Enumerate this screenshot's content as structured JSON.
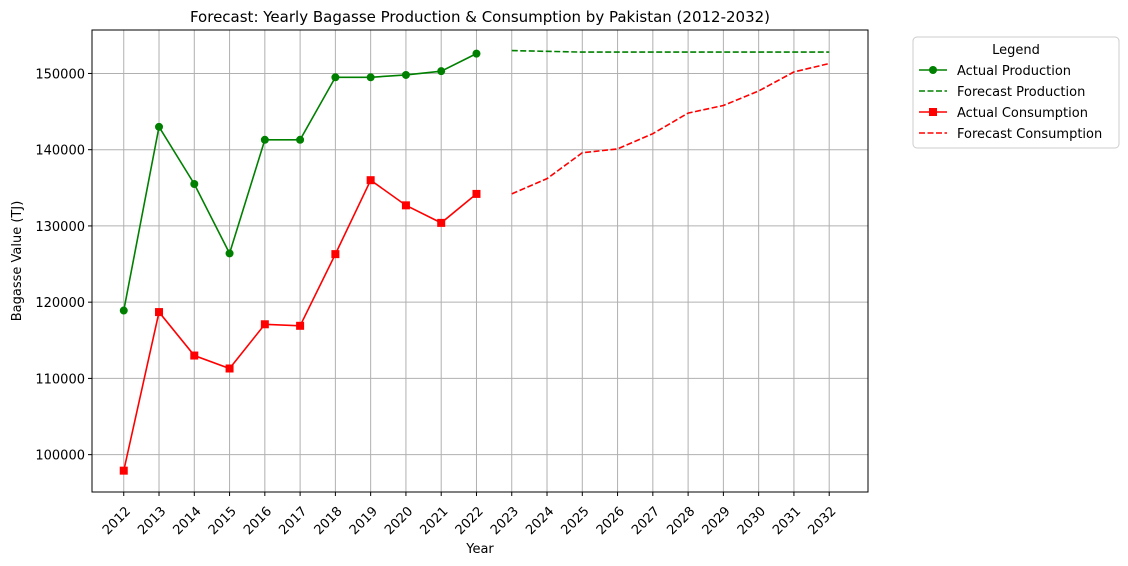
{
  "chart_data": {
    "type": "line",
    "title": "Forecast: Yearly Bagasse Production & Consumption by Pakistan (2012-2032)",
    "xlabel": "Year",
    "ylabel": "Bagasse Value (TJ)",
    "x": [
      2012,
      2013,
      2014,
      2015,
      2016,
      2017,
      2018,
      2019,
      2020,
      2021,
      2022,
      2023,
      2024,
      2025,
      2026,
      2027,
      2028,
      2029,
      2030,
      2031,
      2032
    ],
    "xlim": [
      2011.1,
      2033.1
    ],
    "ylim": [
      95100,
      155700
    ],
    "yticks": [
      100000,
      110000,
      120000,
      130000,
      140000,
      150000
    ],
    "grid": true,
    "legend": {
      "title": "Legend",
      "placement": "outside-upper-right"
    },
    "series": [
      {
        "name": "Actual Production",
        "color": "#008000",
        "style": "solid",
        "marker": "circle",
        "x": [
          2012,
          2013,
          2014,
          2015,
          2016,
          2017,
          2018,
          2019,
          2020,
          2021,
          2022
        ],
        "values": [
          118900,
          143000,
          135500,
          126400,
          141300,
          141300,
          149500,
          149500,
          149800,
          150300,
          152600
        ]
      },
      {
        "name": "Forecast Production",
        "color": "#008000",
        "style": "dashed",
        "marker": "none",
        "x": [
          2023,
          2024,
          2025,
          2026,
          2027,
          2028,
          2029,
          2030,
          2031,
          2032
        ],
        "values": [
          153000,
          152900,
          152800,
          152800,
          152800,
          152800,
          152800,
          152800,
          152800,
          152800
        ]
      },
      {
        "name": "Actual Consumption",
        "color": "#ff0000",
        "style": "solid",
        "marker": "square",
        "x": [
          2012,
          2013,
          2014,
          2015,
          2016,
          2017,
          2018,
          2019,
          2020,
          2021,
          2022
        ],
        "values": [
          97900,
          118700,
          113000,
          111300,
          117100,
          116900,
          126300,
          136000,
          132700,
          130400,
          134200
        ]
      },
      {
        "name": "Forecast Consumption",
        "color": "#ff0000",
        "style": "dashed",
        "marker": "none",
        "x": [
          2023,
          2024,
          2025,
          2026,
          2027,
          2028,
          2029,
          2030,
          2031,
          2032
        ],
        "values": [
          134200,
          136200,
          139600,
          140100,
          142100,
          144800,
          145800,
          147700,
          150200,
          151300
        ]
      }
    ]
  }
}
